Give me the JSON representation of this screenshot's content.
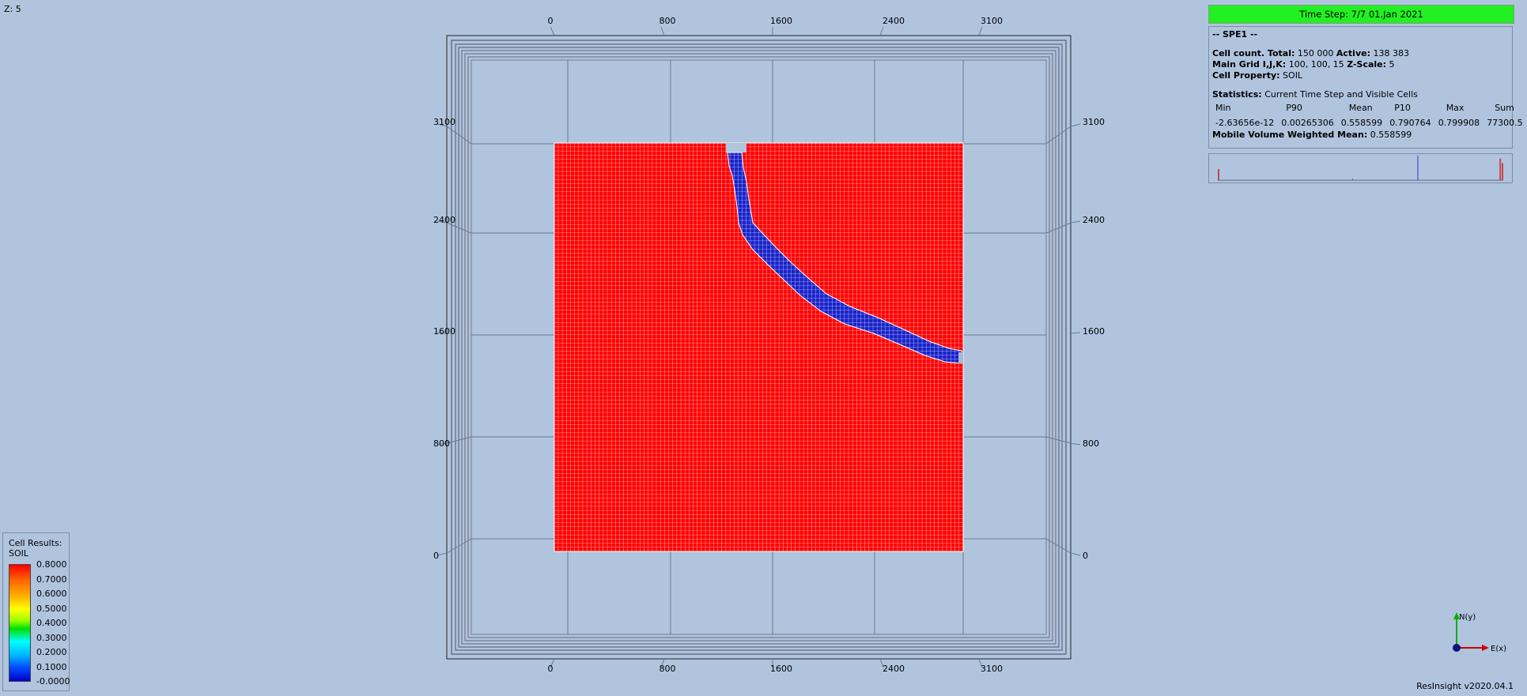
{
  "z_scale_label": "Z: 5",
  "viewport": {
    "axis_ticks_horizontal": [
      "0",
      "800",
      "1600",
      "2400",
      "3100"
    ],
    "axis_ticks_vertical": [
      "3100",
      "2400",
      "1600",
      "800",
      "0"
    ],
    "grid_color": "#ff2a2a",
    "water_color": "#1a22c8"
  },
  "info_panel": {
    "time_step": "Time Step: 7/7 01.Jan 2021",
    "case_name": "-- SPE1 --",
    "cell_count_label": "Cell count. Total:",
    "cell_count_total": "150 000",
    "active_label": "Active:",
    "active_count": "138 383",
    "main_grid_label": "Main Grid I,J,K:",
    "main_grid_value": "100, 100, 15",
    "z_scale_label": "Z-Scale:",
    "z_scale_value": "5",
    "cell_property_label": "Cell Property:",
    "cell_property_value": "SOIL",
    "statistics_label": "Statistics:",
    "statistics_value": "Current Time Step and Visible Cells",
    "stats_headers": [
      "Min",
      "P90",
      "Mean",
      "P10",
      "Max",
      "Sum"
    ],
    "stats_values": [
      "-2.63656e-12",
      "0.00265306",
      "0.558599",
      "0.790764",
      "0.799908",
      "77300.5"
    ],
    "mobile_label": "Mobile Volume Weighted Mean:",
    "mobile_value": "0.558599"
  },
  "legend": {
    "title_line1": "Cell Results:",
    "title_line2": "SOIL",
    "labels": [
      "0.8000",
      "0.7000",
      "0.6000",
      "0.5000",
      "0.4000",
      "0.3000",
      "0.2000",
      "0.1000",
      "-0.0000"
    ]
  },
  "axes": {
    "north": "N(y)",
    "east": "E(x)"
  },
  "version": "ResInsight v2020.04.1"
}
